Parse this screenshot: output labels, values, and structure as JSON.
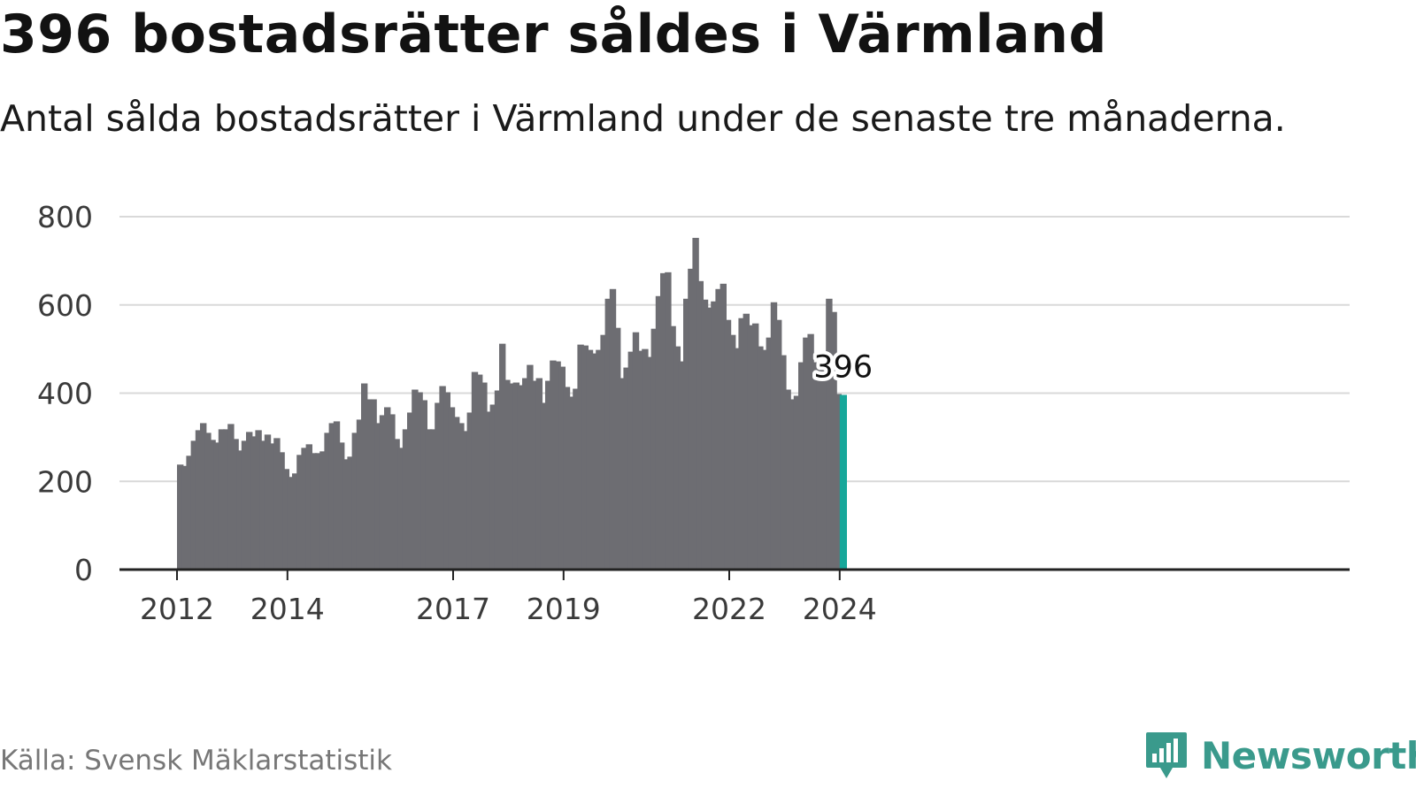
{
  "title": "396 bostadsrätter såldes i Värmland",
  "subtitle": "Antal sålda bostadsrätter i Värmland under de senaste tre månaderna.",
  "source": "Källa: Svensk Mäklarstatistik",
  "brand": {
    "name": "Newsworthy",
    "icon": "bar-chart-speech-bubble-icon"
  },
  "colors": {
    "bar": "#6d6d72",
    "highlight": "#16a79a",
    "grid": "#d9d9d9",
    "axis": "#222222",
    "brand": "#3a9a8c"
  },
  "chart_data": {
    "type": "bar",
    "title": "396 bostadsrätter såldes i Värmland",
    "xlabel": "",
    "ylabel": "",
    "ylim": [
      0,
      800
    ],
    "yticks": [
      "0",
      "200",
      "400",
      "600",
      "800"
    ],
    "x_start_year": 2012,
    "x_end_year": 2024,
    "xticks": [
      "2012",
      "2014",
      "2017",
      "2019",
      "2022",
      "2024"
    ],
    "grid": true,
    "annotation": {
      "label": "396",
      "value": 396
    },
    "series": [
      {
        "name": "Antal sålda bostadsrätter",
        "values": [
          238,
          235,
          258,
          292,
          316,
          332,
          310,
          294,
          288,
          318,
          318,
          330,
          296,
          270,
          292,
          312,
          302,
          316,
          292,
          306,
          286,
          298,
          266,
          228,
          210,
          218,
          260,
          276,
          284,
          264,
          264,
          268,
          310,
          332,
          336,
          288,
          250,
          256,
          310,
          340,
          422,
          386,
          386,
          332,
          350,
          368,
          352,
          296,
          276,
          318,
          356,
          408,
          402,
          384,
          318,
          318,
          378,
          416,
          402,
          368,
          346,
          332,
          314,
          356,
          448,
          442,
          424,
          358,
          374,
          406,
          512,
          430,
          422,
          424,
          418,
          434,
          464,
          428,
          434,
          378,
          428,
          474,
          472,
          460,
          414,
          392,
          410,
          510,
          508,
          498,
          490,
          498,
          532,
          614,
          636,
          548,
          434,
          458,
          494,
          538,
          496,
          500,
          482,
          546,
          620,
          672,
          674,
          552,
          506,
          472,
          614,
          682,
          752,
          654,
          612,
          594,
          608,
          636,
          648,
          566,
          532,
          502,
          570,
          580,
          554,
          558,
          506,
          498,
          526,
          606,
          566,
          486,
          408,
          386,
          394,
          470,
          526,
          534,
          470,
          470,
          484,
          614,
          584,
          398,
          396
        ]
      }
    ],
    "highlight_last": true
  }
}
